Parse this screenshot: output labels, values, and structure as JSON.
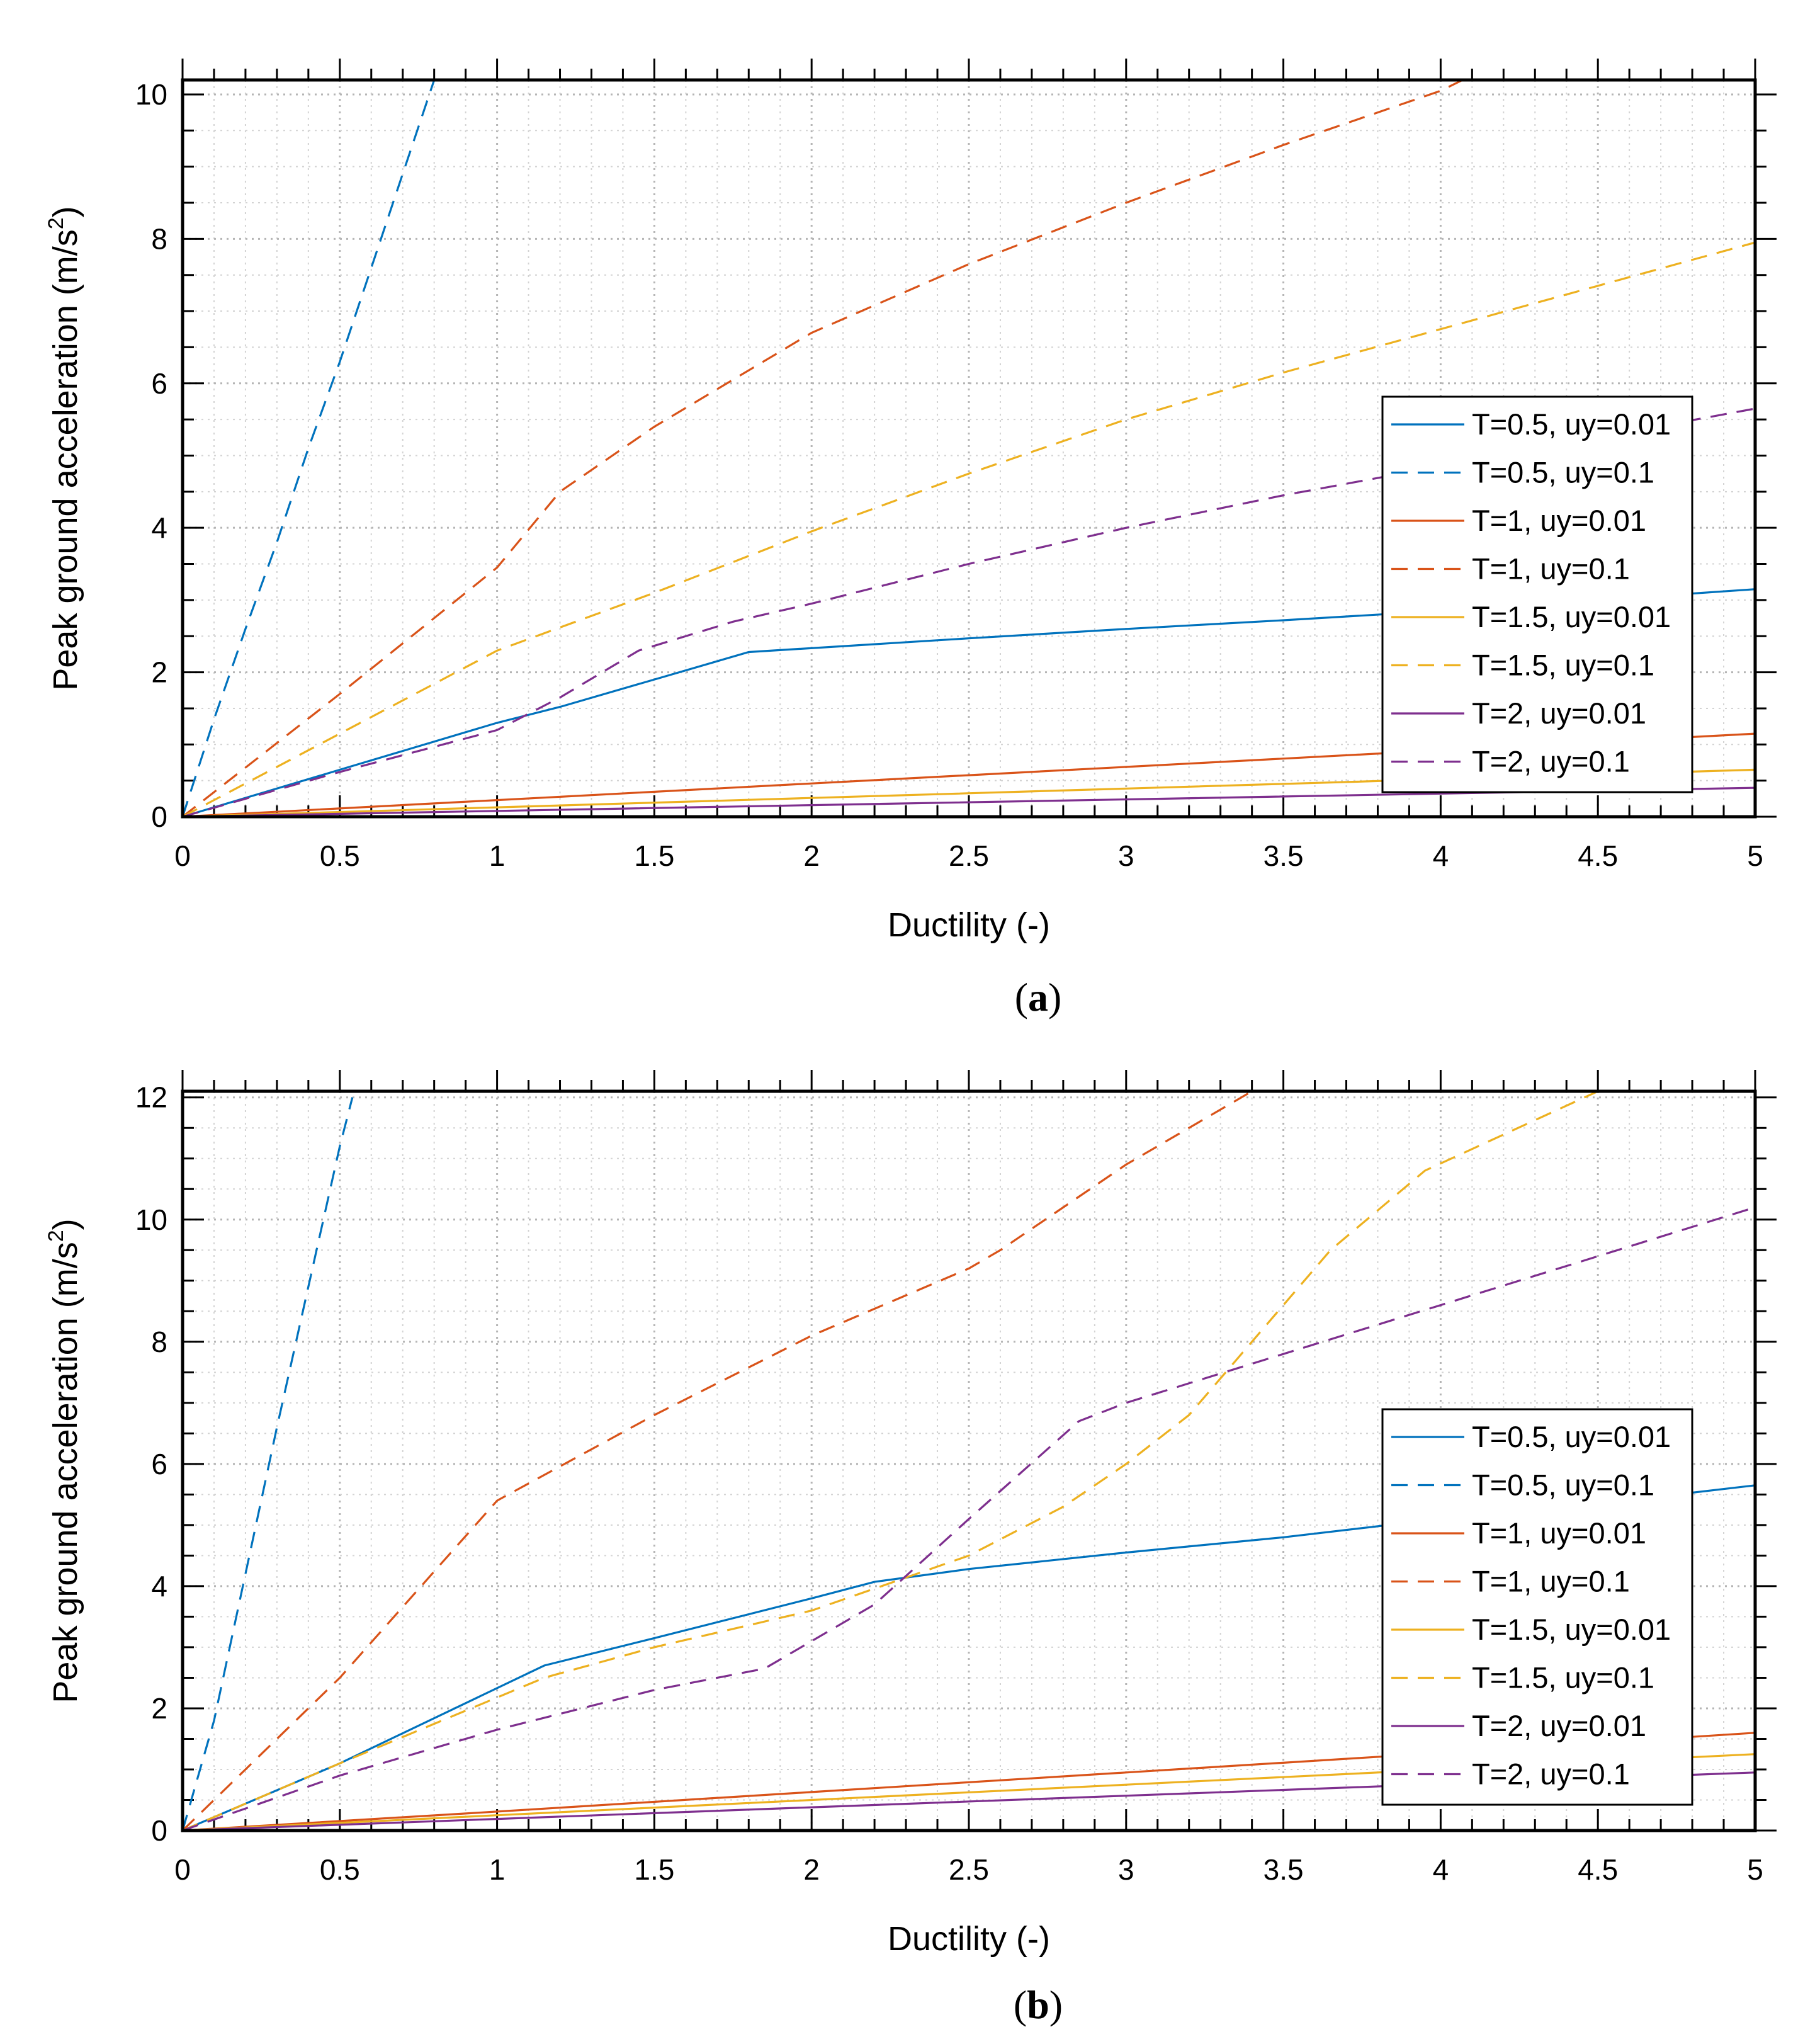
{
  "colors": {
    "blue": "#0072BD",
    "orange": "#D95319",
    "yellow": "#EDB120",
    "purple": "#7E2F8E"
  },
  "chart_data": [
    {
      "type": "line",
      "panel_caption": "(a)",
      "panel_letter": "a",
      "xlabel": "Ductility (-)",
      "ylabel": "Peak ground acceleration (m/s2)",
      "ylabel_main": "Peak ground acceleration (m/s",
      "ylabel_sup": "2",
      "ylabel_close": ")",
      "xlim": [
        0,
        5
      ],
      "ylim": [
        0,
        10.2
      ],
      "grid": "on (major and minor, dotted)",
      "legend_position": "right",
      "xticks": [
        "0",
        "0.5",
        "1",
        "1.5",
        "2",
        "2.5",
        "3",
        "3.5",
        "4",
        "4.5",
        "5"
      ],
      "yticks": [
        "0",
        "2",
        "4",
        "6",
        "8",
        "10"
      ],
      "series": [
        {
          "name": "T=0.5, uy=0.01",
          "color": "blue",
          "style": "solid",
          "x": [
            0,
            0.5,
            1.0,
            1.2,
            1.5,
            1.8,
            2.5,
            3.0,
            3.5,
            4.0,
            4.5,
            5.0
          ],
          "y": [
            0,
            0.65,
            1.3,
            1.52,
            1.9,
            2.28,
            2.47,
            2.6,
            2.72,
            2.85,
            3.0,
            3.15
          ]
        },
        {
          "name": "T=0.5, uy=0.1",
          "color": "blue",
          "style": "dashed",
          "x": [
            0,
            0.1,
            0.2,
            0.3,
            0.4,
            0.5,
            0.6,
            0.7,
            0.8
          ],
          "y": [
            0,
            1.35,
            2.6,
            3.8,
            5.1,
            6.3,
            7.6,
            8.9,
            10.2
          ]
        },
        {
          "name": "T=1, uy=0.01",
          "color": "orange",
          "style": "solid",
          "x": [
            0,
            1,
            2,
            3,
            4,
            5
          ],
          "y": [
            0,
            0.23,
            0.46,
            0.69,
            0.92,
            1.15
          ]
        },
        {
          "name": "T=1, uy=0.1",
          "color": "orange",
          "style": "dashed",
          "x": [
            0,
            0.5,
            1.0,
            1.2,
            1.5,
            2.0,
            2.5,
            3.0,
            3.5,
            4.0,
            4.07
          ],
          "y": [
            0,
            1.7,
            3.45,
            4.5,
            5.4,
            6.7,
            7.65,
            8.5,
            9.3,
            10.05,
            10.2
          ]
        },
        {
          "name": "T=1.5, uy=0.01",
          "color": "yellow",
          "style": "solid",
          "x": [
            0,
            1,
            2,
            3,
            4,
            5
          ],
          "y": [
            0,
            0.13,
            0.26,
            0.39,
            0.52,
            0.65
          ]
        },
        {
          "name": "T=1.5, uy=0.1",
          "color": "yellow",
          "style": "dashed",
          "x": [
            0,
            0.5,
            1.0,
            1.5,
            2.0,
            2.5,
            3.0,
            3.5,
            4.0,
            4.5,
            5.0
          ],
          "y": [
            0,
            1.15,
            2.3,
            3.1,
            3.95,
            4.75,
            5.5,
            6.15,
            6.75,
            7.35,
            7.95
          ]
        },
        {
          "name": "T=2, uy=0.01",
          "color": "purple",
          "style": "solid",
          "x": [
            0,
            1,
            2,
            3,
            4,
            5
          ],
          "y": [
            0,
            0.08,
            0.16,
            0.24,
            0.32,
            0.4
          ]
        },
        {
          "name": "T=2, uy=0.1",
          "color": "purple",
          "style": "dashed",
          "x": [
            0,
            0.5,
            1.0,
            1.2,
            1.45,
            1.75,
            2.0,
            2.5,
            3.0,
            3.5,
            4.0,
            4.5,
            5.0
          ],
          "y": [
            0,
            0.62,
            1.2,
            1.65,
            2.3,
            2.7,
            2.95,
            3.5,
            4.0,
            4.45,
            4.85,
            5.25,
            5.65
          ]
        }
      ]
    },
    {
      "type": "line",
      "panel_caption": "(b)",
      "panel_letter": "b",
      "xlabel": "Ductility (-)",
      "ylabel": "Peak ground acceleration (m/s2)",
      "ylabel_main": "Peak ground acceleration (m/s",
      "ylabel_sup": "2",
      "ylabel_close": ")",
      "xlim": [
        0,
        5
      ],
      "ylim": [
        0,
        12.1
      ],
      "grid": "on (major and minor, dotted)",
      "legend_position": "right",
      "xticks": [
        "0",
        "0.5",
        "1",
        "1.5",
        "2",
        "2.5",
        "3",
        "3.5",
        "4",
        "4.5",
        "5"
      ],
      "yticks": [
        "0",
        "2",
        "4",
        "6",
        "8",
        "10",
        "12"
      ],
      "series": [
        {
          "name": "T=0.5, uy=0.01",
          "color": "blue",
          "style": "solid",
          "x": [
            0,
            0.5,
            1.15,
            1.5,
            2.0,
            2.2,
            2.5,
            3.0,
            3.5,
            4.0,
            4.5,
            5.0
          ],
          "y": [
            0,
            1.1,
            2.7,
            3.15,
            3.8,
            4.07,
            4.28,
            4.55,
            4.8,
            5.1,
            5.35,
            5.65
          ]
        },
        {
          "name": "T=0.5, uy=0.1",
          "color": "blue",
          "style": "dashed",
          "x": [
            0,
            0.1,
            0.2,
            0.3,
            0.4,
            0.5,
            0.54
          ],
          "y": [
            0,
            1.8,
            4.2,
            6.6,
            8.9,
            11.2,
            12.0
          ]
        },
        {
          "name": "T=1, uy=0.01",
          "color": "orange",
          "style": "solid",
          "x": [
            0,
            1,
            2,
            3,
            4,
            5
          ],
          "y": [
            0,
            0.31,
            0.63,
            0.95,
            1.27,
            1.6
          ]
        },
        {
          "name": "T=1, uy=0.1",
          "color": "orange",
          "style": "dashed",
          "x": [
            0,
            0.5,
            1.0,
            1.5,
            2.0,
            2.5,
            2.6,
            3.0,
            3.4
          ],
          "y": [
            0,
            2.5,
            5.4,
            6.8,
            8.1,
            9.2,
            9.5,
            10.9,
            12.1
          ]
        },
        {
          "name": "T=1.5, uy=0.01",
          "color": "yellow",
          "style": "solid",
          "x": [
            0,
            1,
            2,
            3,
            4,
            5
          ],
          "y": [
            0,
            0.25,
            0.5,
            0.75,
            1.0,
            1.25
          ]
        },
        {
          "name": "T=1.5, uy=0.1",
          "color": "yellow",
          "style": "dashed",
          "x": [
            0,
            0.5,
            1.15,
            1.5,
            2.0,
            2.5,
            2.8,
            3.0,
            3.2,
            3.45,
            3.65,
            3.95,
            4.5
          ],
          "y": [
            0,
            1.1,
            2.5,
            3.0,
            3.6,
            4.5,
            5.3,
            6.0,
            6.8,
            8.3,
            9.5,
            10.8,
            12.1
          ]
        },
        {
          "name": "T=2, uy=0.01",
          "color": "purple",
          "style": "solid",
          "x": [
            0,
            1,
            2,
            3,
            4,
            5
          ],
          "y": [
            0,
            0.19,
            0.38,
            0.57,
            0.76,
            0.95
          ]
        },
        {
          "name": "T=2, uy=0.1",
          "color": "purple",
          "style": "dashed",
          "x": [
            0,
            0.5,
            1.0,
            1.5,
            1.85,
            2.0,
            2.2,
            2.5,
            2.85,
            3.0,
            3.5,
            4.0,
            4.5,
            5.0
          ],
          "y": [
            0,
            0.9,
            1.65,
            2.3,
            2.65,
            3.1,
            3.7,
            5.1,
            6.7,
            7.0,
            7.8,
            8.6,
            9.4,
            10.2
          ]
        }
      ]
    }
  ]
}
